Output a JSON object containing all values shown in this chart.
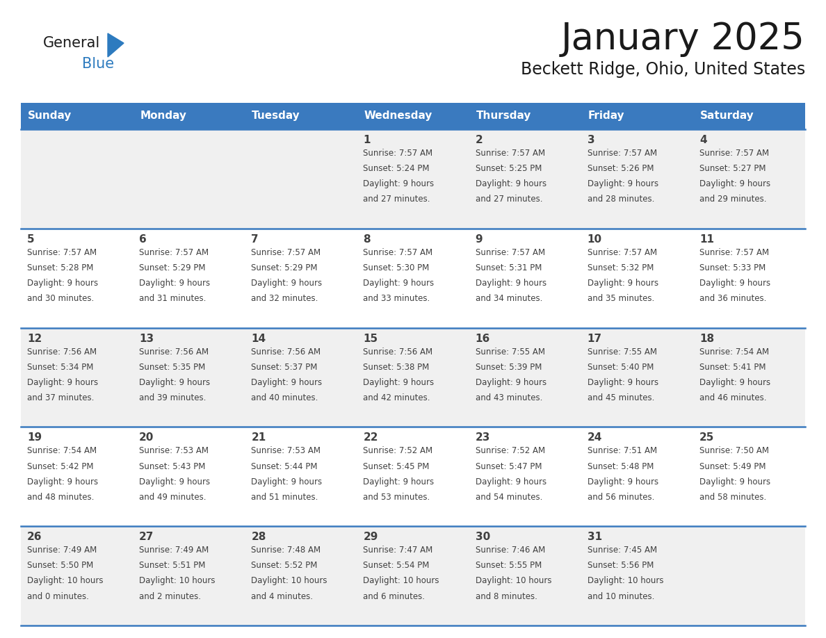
{
  "title": "January 2025",
  "subtitle": "Beckett Ridge, Ohio, United States",
  "header_bg": "#3a7abf",
  "header_text_color": "#ffffff",
  "cell_bg_odd_row": "#f0f0f0",
  "cell_bg_even_row": "#ffffff",
  "row_line_color": "#3a7abf",
  "text_color": "#404040",
  "days_of_week": [
    "Sunday",
    "Monday",
    "Tuesday",
    "Wednesday",
    "Thursday",
    "Friday",
    "Saturday"
  ],
  "weeks": [
    [
      {
        "day": "",
        "sunrise": "",
        "sunset": "",
        "daylight": ""
      },
      {
        "day": "",
        "sunrise": "",
        "sunset": "",
        "daylight": ""
      },
      {
        "day": "",
        "sunrise": "",
        "sunset": "",
        "daylight": ""
      },
      {
        "day": "1",
        "sunrise": "7:57 AM",
        "sunset": "5:24 PM",
        "daylight_h": "9 hours",
        "daylight_m": "and 27 minutes."
      },
      {
        "day": "2",
        "sunrise": "7:57 AM",
        "sunset": "5:25 PM",
        "daylight_h": "9 hours",
        "daylight_m": "and 27 minutes."
      },
      {
        "day": "3",
        "sunrise": "7:57 AM",
        "sunset": "5:26 PM",
        "daylight_h": "9 hours",
        "daylight_m": "and 28 minutes."
      },
      {
        "day": "4",
        "sunrise": "7:57 AM",
        "sunset": "5:27 PM",
        "daylight_h": "9 hours",
        "daylight_m": "and 29 minutes."
      }
    ],
    [
      {
        "day": "5",
        "sunrise": "7:57 AM",
        "sunset": "5:28 PM",
        "daylight_h": "9 hours",
        "daylight_m": "and 30 minutes."
      },
      {
        "day": "6",
        "sunrise": "7:57 AM",
        "sunset": "5:29 PM",
        "daylight_h": "9 hours",
        "daylight_m": "and 31 minutes."
      },
      {
        "day": "7",
        "sunrise": "7:57 AM",
        "sunset": "5:29 PM",
        "daylight_h": "9 hours",
        "daylight_m": "and 32 minutes."
      },
      {
        "day": "8",
        "sunrise": "7:57 AM",
        "sunset": "5:30 PM",
        "daylight_h": "9 hours",
        "daylight_m": "and 33 minutes."
      },
      {
        "day": "9",
        "sunrise": "7:57 AM",
        "sunset": "5:31 PM",
        "daylight_h": "9 hours",
        "daylight_m": "and 34 minutes."
      },
      {
        "day": "10",
        "sunrise": "7:57 AM",
        "sunset": "5:32 PM",
        "daylight_h": "9 hours",
        "daylight_m": "and 35 minutes."
      },
      {
        "day": "11",
        "sunrise": "7:57 AM",
        "sunset": "5:33 PM",
        "daylight_h": "9 hours",
        "daylight_m": "and 36 minutes."
      }
    ],
    [
      {
        "day": "12",
        "sunrise": "7:56 AM",
        "sunset": "5:34 PM",
        "daylight_h": "9 hours",
        "daylight_m": "and 37 minutes."
      },
      {
        "day": "13",
        "sunrise": "7:56 AM",
        "sunset": "5:35 PM",
        "daylight_h": "9 hours",
        "daylight_m": "and 39 minutes."
      },
      {
        "day": "14",
        "sunrise": "7:56 AM",
        "sunset": "5:37 PM",
        "daylight_h": "9 hours",
        "daylight_m": "and 40 minutes."
      },
      {
        "day": "15",
        "sunrise": "7:56 AM",
        "sunset": "5:38 PM",
        "daylight_h": "9 hours",
        "daylight_m": "and 42 minutes."
      },
      {
        "day": "16",
        "sunrise": "7:55 AM",
        "sunset": "5:39 PM",
        "daylight_h": "9 hours",
        "daylight_m": "and 43 minutes."
      },
      {
        "day": "17",
        "sunrise": "7:55 AM",
        "sunset": "5:40 PM",
        "daylight_h": "9 hours",
        "daylight_m": "and 45 minutes."
      },
      {
        "day": "18",
        "sunrise": "7:54 AM",
        "sunset": "5:41 PM",
        "daylight_h": "9 hours",
        "daylight_m": "and 46 minutes."
      }
    ],
    [
      {
        "day": "19",
        "sunrise": "7:54 AM",
        "sunset": "5:42 PM",
        "daylight_h": "9 hours",
        "daylight_m": "and 48 minutes."
      },
      {
        "day": "20",
        "sunrise": "7:53 AM",
        "sunset": "5:43 PM",
        "daylight_h": "9 hours",
        "daylight_m": "and 49 minutes."
      },
      {
        "day": "21",
        "sunrise": "7:53 AM",
        "sunset": "5:44 PM",
        "daylight_h": "9 hours",
        "daylight_m": "and 51 minutes."
      },
      {
        "day": "22",
        "sunrise": "7:52 AM",
        "sunset": "5:45 PM",
        "daylight_h": "9 hours",
        "daylight_m": "and 53 minutes."
      },
      {
        "day": "23",
        "sunrise": "7:52 AM",
        "sunset": "5:47 PM",
        "daylight_h": "9 hours",
        "daylight_m": "and 54 minutes."
      },
      {
        "day": "24",
        "sunrise": "7:51 AM",
        "sunset": "5:48 PM",
        "daylight_h": "9 hours",
        "daylight_m": "and 56 minutes."
      },
      {
        "day": "25",
        "sunrise": "7:50 AM",
        "sunset": "5:49 PM",
        "daylight_h": "9 hours",
        "daylight_m": "and 58 minutes."
      }
    ],
    [
      {
        "day": "26",
        "sunrise": "7:49 AM",
        "sunset": "5:50 PM",
        "daylight_h": "10 hours",
        "daylight_m": "and 0 minutes."
      },
      {
        "day": "27",
        "sunrise": "7:49 AM",
        "sunset": "5:51 PM",
        "daylight_h": "10 hours",
        "daylight_m": "and 2 minutes."
      },
      {
        "day": "28",
        "sunrise": "7:48 AM",
        "sunset": "5:52 PM",
        "daylight_h": "10 hours",
        "daylight_m": "and 4 minutes."
      },
      {
        "day": "29",
        "sunrise": "7:47 AM",
        "sunset": "5:54 PM",
        "daylight_h": "10 hours",
        "daylight_m": "and 6 minutes."
      },
      {
        "day": "30",
        "sunrise": "7:46 AM",
        "sunset": "5:55 PM",
        "daylight_h": "10 hours",
        "daylight_m": "and 8 minutes."
      },
      {
        "day": "31",
        "sunrise": "7:45 AM",
        "sunset": "5:56 PM",
        "daylight_h": "10 hours",
        "daylight_m": "and 10 minutes."
      },
      {
        "day": "",
        "sunrise": "",
        "sunset": "",
        "daylight_h": "",
        "daylight_m": ""
      }
    ]
  ]
}
